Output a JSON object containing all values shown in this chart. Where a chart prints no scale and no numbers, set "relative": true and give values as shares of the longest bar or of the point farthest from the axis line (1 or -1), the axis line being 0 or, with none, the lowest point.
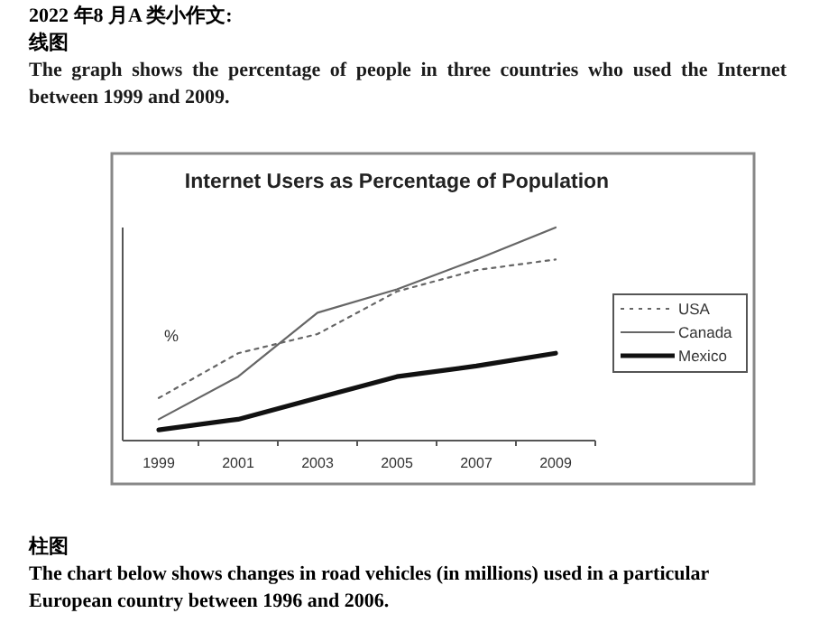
{
  "chart_data": {
    "type": "line",
    "title": "Internet Users as Percentage of Population",
    "ylabel": "%",
    "relative": true,
    "categories": [
      "1999",
      "2001",
      "2003",
      "2005",
      "2007",
      "2009"
    ],
    "series": [
      {
        "name": "USA",
        "color": "#666666",
        "line_style": "dotted",
        "values": [
          0.2,
          0.41,
          0.5,
          0.7,
          0.8,
          0.85
        ]
      },
      {
        "name": "Canada",
        "color": "#666666",
        "line_style": "solid",
        "values": [
          0.1,
          0.3,
          0.6,
          0.71,
          0.85,
          1
        ]
      },
      {
        "name": "Mexico",
        "color": "#111111",
        "line_style": "solid",
        "values": [
          0.05,
          0.1,
          0.2,
          0.3,
          0.35,
          0.41
        ]
      }
    ],
    "legend": "right",
    "annotations": [
      "2022 年8 月A 类小作文:",
      "线图",
      "The graph shows the percentage of people in three countries who used the Internet between 1999 and 2009.",
      "柱图",
      "The chart below shows changes in road vehicles (in millions) used in a particular European country between 1996 and 2006."
    ]
  }
}
